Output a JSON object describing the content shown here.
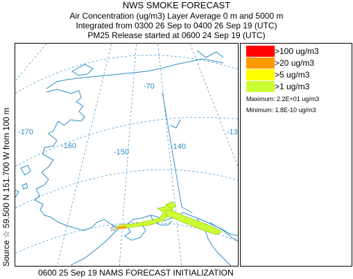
{
  "header": {
    "title": "NWS SMOKE FORECAST",
    "line2": "Air Concentration (ug/m3) Layer Average     0 m and  5000 m",
    "line3": "Integrated from 0300 26 Sep to 0400 26 Sep 19 (UTC)",
    "line4": "PM25 Release started at 0600 24 Sep 19 (UTC)"
  },
  "side_label": "Source ☆ 59.500 N 151.700 W    from  100 m",
  "footer": "0600 25 Sep 19 NAMS FORECAST INITIALIZATION",
  "map": {
    "longitude_labels": [
      "-170",
      "-160",
      "-150",
      "-140",
      "-130",
      "-70"
    ],
    "colors": {
      "coast": "#2a8cc4",
      "grid": "#4a9bd0"
    }
  },
  "legend": {
    "items": [
      {
        "label": ">100 ug/m3",
        "color": "#ff0000"
      },
      {
        "label": ">20 ug/m3",
        "color": "#ff9900"
      },
      {
        "label": ">5 ug/m3",
        "color": "#ffff00"
      },
      {
        "label": ">1 ug/m3",
        "color": "#ccff33"
      }
    ],
    "maximum": "Maximum: 2.2E+01 ug/m3",
    "minimum": "Minimum: 1.8E-10 ug/m3"
  }
}
